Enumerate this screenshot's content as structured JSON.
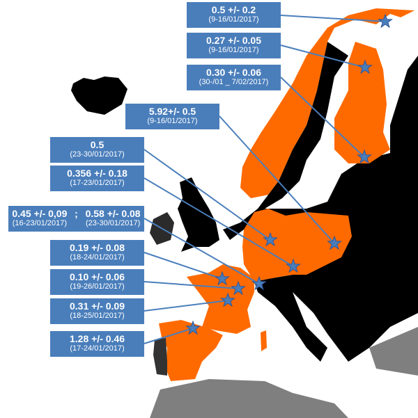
{
  "colors": {
    "sampled": "#ff6a00",
    "not_sampled": "#000000",
    "other": "#808080",
    "label_box": "#4a7ebb",
    "star": "#4a7ebb"
  },
  "markers": [
    {
      "value": "0.5 +/- 0.2",
      "dates": "(9-16/01/2017)"
    },
    {
      "value": "0.27 +/- 0.05",
      "dates": "(9-16/01/2017)"
    },
    {
      "value": "0.30 +/- 0.06",
      "dates": "(30-/01 _ 7/02/2017)"
    },
    {
      "value": "5.92+/- 0.5",
      "dates": "(9-16/01/2017)"
    },
    {
      "value": "0.5",
      "dates": "(23-30/01/2017)"
    },
    {
      "value": "0.356 +/- 0.18",
      "dates": "(17-23/01/2017)"
    },
    {
      "value": "0.45 +/- 0,09",
      "dates": "(16-23/01/2017)",
      "separator": ";",
      "value2": "0.58 +/-  0.08",
      "dates2": "(23-30/01/2017)"
    },
    {
      "value": "0.19 +/- 0.08",
      "dates": "(18-24/01/2017)"
    },
    {
      "value": "0.10 +/- 0.06",
      "dates": "(19-26/01/2017)"
    },
    {
      "value": "0.31 +/- 0.09",
      "dates": "(18-25/01/2017)"
    },
    {
      "value": "1.28 +/- 0.46",
      "dates": "(17-24/01/2017)"
    }
  ]
}
